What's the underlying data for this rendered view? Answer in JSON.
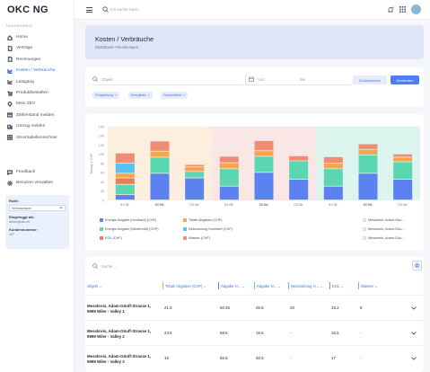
{
  "brand": "OKC NG",
  "sidebar": {
    "section": "DASHBOARDS",
    "items": [
      {
        "label": "Home",
        "icon": "home-icon"
      },
      {
        "label": "Verträge",
        "icon": "file-icon"
      },
      {
        "label": "Rechnungen",
        "icon": "file-icon"
      },
      {
        "label": "Kosten / Verbräuche",
        "icon": "chart-icon",
        "active": true
      },
      {
        "label": "Lastgang",
        "icon": "chart-icon"
      },
      {
        "label": "Produktbestellen",
        "icon": "cart-icon"
      },
      {
        "label": "Mein ZEV",
        "icon": "bulb-icon"
      },
      {
        "label": "Zählerstand melden",
        "icon": "mail-icon"
      },
      {
        "label": "Umzug melden",
        "icon": "truck-icon"
      },
      {
        "label": "Stromtabellenrechner",
        "icon": "grid-icon"
      }
    ],
    "bottom_items": [
      {
        "label": "Feedback",
        "icon": "chat-icon"
      },
      {
        "label": "Benutzer verwalten",
        "icon": "gear-icon"
      }
    ],
    "role_box": {
      "role_label": "Rolle:",
      "role_value": "Verbrauchsner",
      "login_label": "Eingeloggt als:",
      "login_value": "demo@okc.ch",
      "customer_label": "Kundennummer:",
      "customer_value": "437"
    }
  },
  "topbar": {
    "search_placeholder": "Ich suche nach..."
  },
  "breadcrumb": {
    "title": "Kosten / Verbräuche",
    "path": "Dashboard   •   Rechnungen"
  },
  "filters": {
    "object_placeholder": "Objekt",
    "from_placeholder": "Von",
    "to_placeholder": "Bis",
    "reset_label": "Zurücksetzen",
    "apply_label": "Anwenden",
    "chips": [
      "Gruppierung",
      "Energieart",
      "Gesamtsicht"
    ]
  },
  "colors": {
    "energy_high": "#5b82ee",
    "energy_low": "#5ad6b0",
    "eol": "#ef7b56",
    "total_fee": "#f4a74a",
    "grid_use": "#5ac2f5",
    "water": "#f08c72",
    "bg_peach": "#fdeedd",
    "bg_pink": "#fbe6e6",
    "bg_mint": "#dcf5ef",
    "accent": "#3f6fe8"
  },
  "chart_data": {
    "type": "bar",
    "stacked": true,
    "ylabel": "Betrag in CHF",
    "ylim": [
      0,
      160
    ],
    "yticks": [
      0,
      20,
      40,
      60,
      80,
      100,
      120,
      140,
      160
    ],
    "categories": [
      "01.08.",
      "02.08.",
      "03.08.",
      "01.08.",
      "02.08.",
      "03.08.",
      "01.08.",
      "02.08.",
      "03.08."
    ],
    "bold_ticks": [
      1,
      4,
      7
    ],
    "series": [
      {
        "name": "Energie Abgabe (Hochtarif) (CHF)",
        "color_key": "energy_high",
        "values": [
          12,
          58,
          48,
          30,
          60,
          45,
          30,
          58,
          45
        ]
      },
      {
        "name": "Energie Abgabe (Niedertarif) (CHF)",
        "color_key": "energy_low",
        "values": [
          22,
          35,
          14,
          38,
          35,
          40,
          38,
          40,
          38
        ]
      },
      {
        "name": "EOL (CHF)",
        "color_key": "eol",
        "values": [
          14,
          0,
          0,
          0,
          0,
          0,
          0,
          0,
          0
        ]
      },
      {
        "name": "Totale Abgaben (CHF)",
        "color_key": "total_fee",
        "values": [
          10,
          13,
          10,
          13,
          12,
          0,
          12,
          12,
          10
        ]
      },
      {
        "name": "Netznutzung Hochtarif (CHF)",
        "color_key": "grid_use",
        "values": [
          22,
          0,
          0,
          0,
          0,
          0,
          0,
          0,
          0
        ]
      },
      {
        "name": "Wasser (CHF)",
        "color_key": "water",
        "values": [
          22,
          22,
          5,
          14,
          22,
          11,
          14,
          12,
          7
        ]
      }
    ],
    "legend_extra": [
      "Messkreis, Adam-Göu...",
      "Messkreis, Adam-Göu...",
      "Messkreis, Adam-Göu..."
    ]
  },
  "table": {
    "search_placeholder": "Suche ...",
    "columns": [
      "Objekt",
      "Totale Abgaben (CHF)",
      "Abgabe H...",
      "Abgabe N...",
      "Netznutzung H...",
      "EOL",
      "Wasser"
    ],
    "rows": [
      {
        "object": "Messkreis, Adam-Göuff-Strasse 1, 9999 Wiler - Valley 1",
        "values": [
          "21.5",
          "60.45",
          "25.5",
          "20",
          "15.2",
          "8"
        ]
      },
      {
        "object": "Messkreis, Adam-Göuff-Strasse 1, 9999 Wiler - Valley 2",
        "values": [
          "23.5",
          "58.5",
          "15.5",
          "-",
          "15.5",
          "-"
        ]
      },
      {
        "object": "Messkreis, Adam-Göuff-Strasse 1, 9999 Wiler - Valley 3",
        "values": [
          "19",
          "65.5",
          "30.5",
          "-",
          "17",
          "-"
        ]
      }
    ]
  }
}
